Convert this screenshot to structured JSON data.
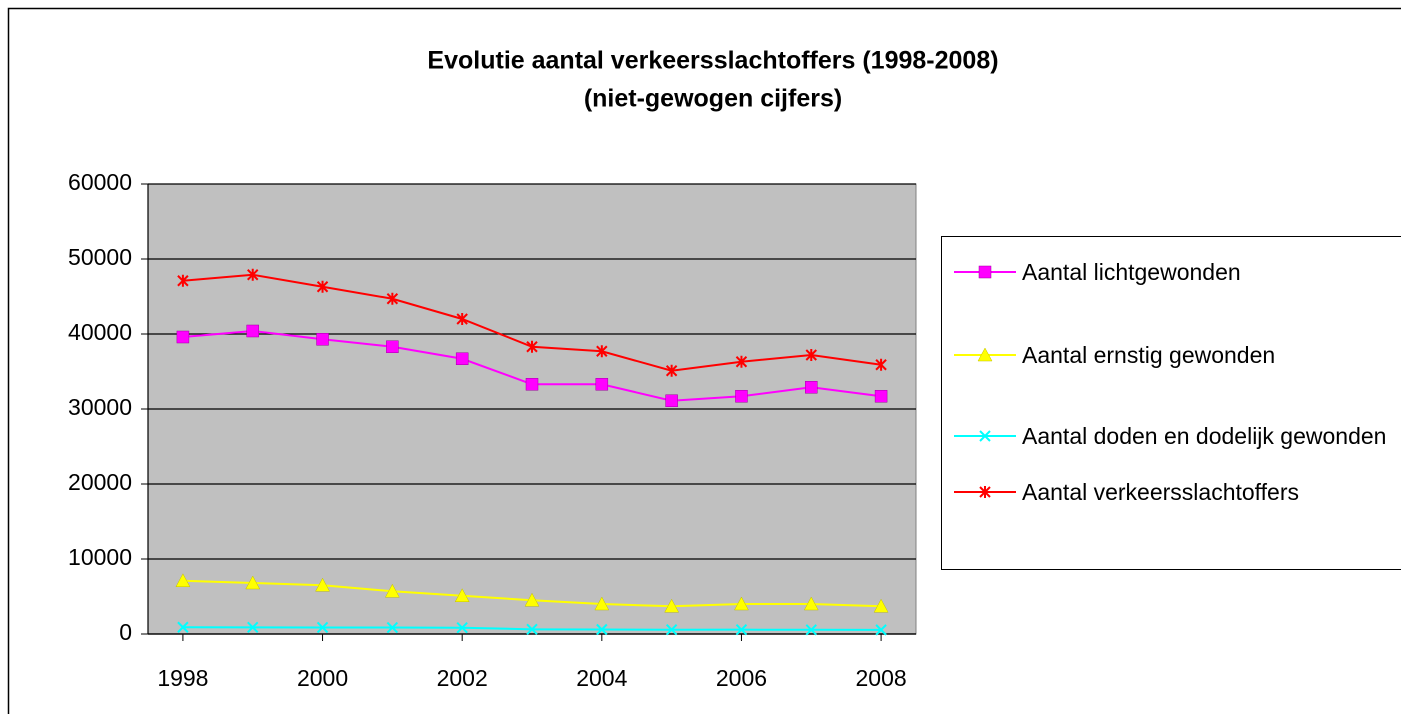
{
  "chart_data": {
    "type": "line",
    "title": "Evolutie aantal verkeersslachtoffers (1998-2008)",
    "subtitle": "(niet-gewogen cijfers)",
    "x": [
      1998,
      1999,
      2000,
      2001,
      2002,
      2003,
      2004,
      2005,
      2006,
      2007,
      2008
    ],
    "xlim": [
      1997.5,
      2008.5
    ],
    "xticks": [
      1998,
      2000,
      2002,
      2004,
      2006,
      2008
    ],
    "ylim": [
      0,
      60000
    ],
    "yticks": [
      0,
      10000,
      20000,
      30000,
      40000,
      50000,
      60000
    ],
    "grid": true,
    "legend": "right",
    "series": [
      {
        "name": "Aantal lichtgewonden",
        "color": "#ff00ff",
        "marker": "square",
        "values": [
          39600,
          40400,
          39300,
          38300,
          36700,
          33300,
          33300,
          31100,
          31700,
          32900,
          31700
        ]
      },
      {
        "name": "Aantal ernstig gewonden",
        "color": "#ffff00",
        "marker": "triangle",
        "values": [
          7100,
          6800,
          6500,
          5700,
          5100,
          4500,
          4000,
          3700,
          4000,
          4000,
          3700
        ]
      },
      {
        "name": "Aantal doden en dodelijk gewonden",
        "color": "#00ffff",
        "marker": "x",
        "values": [
          900,
          890,
          870,
          860,
          840,
          620,
          600,
          570,
          580,
          560,
          550
        ]
      },
      {
        "name": "Aantal verkeersslachtoffers",
        "color": "#ff0000",
        "marker": "star",
        "values": [
          47100,
          47900,
          46300,
          44700,
          42000,
          38300,
          37700,
          35100,
          36300,
          37200,
          35900
        ]
      }
    ]
  }
}
